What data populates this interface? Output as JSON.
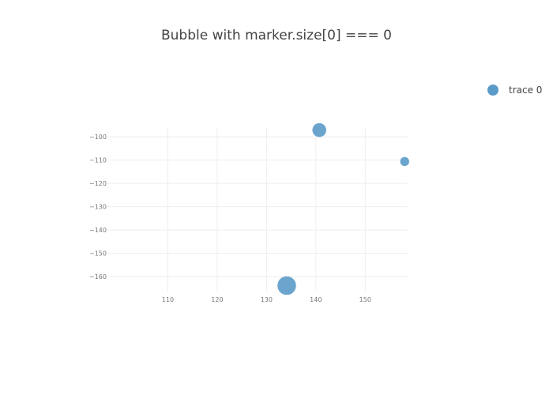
{
  "chart_data": {
    "type": "scatter",
    "title": "Bubble with marker.size[0] === 0",
    "xlabel": "",
    "ylabel": "",
    "xlim": [
      97.6,
      158.6
    ],
    "ylim": [
      -166.1,
      -96.2
    ],
    "x_ticks": [
      110,
      120,
      130,
      140,
      150
    ],
    "y_ticks": [
      -100,
      -110,
      -120,
      -130,
      -140,
      -150,
      -160
    ],
    "x_tick_labels": [
      "110",
      "120",
      "130",
      "140",
      "150"
    ],
    "y_tick_labels": [
      "−100",
      "−110",
      "−120",
      "−130",
      "−140",
      "−150",
      "−160"
    ],
    "grid": true,
    "legend_position": "top-right",
    "series": [
      {
        "name": "trace 0",
        "color": "#5b9bc9",
        "points": [
          {
            "x": 140.7,
            "y": -97.1,
            "size": 18
          },
          {
            "x": 158.0,
            "y": -110.6,
            "size": 12
          },
          {
            "x": 134.1,
            "y": -163.9,
            "size": 24
          }
        ]
      }
    ]
  }
}
